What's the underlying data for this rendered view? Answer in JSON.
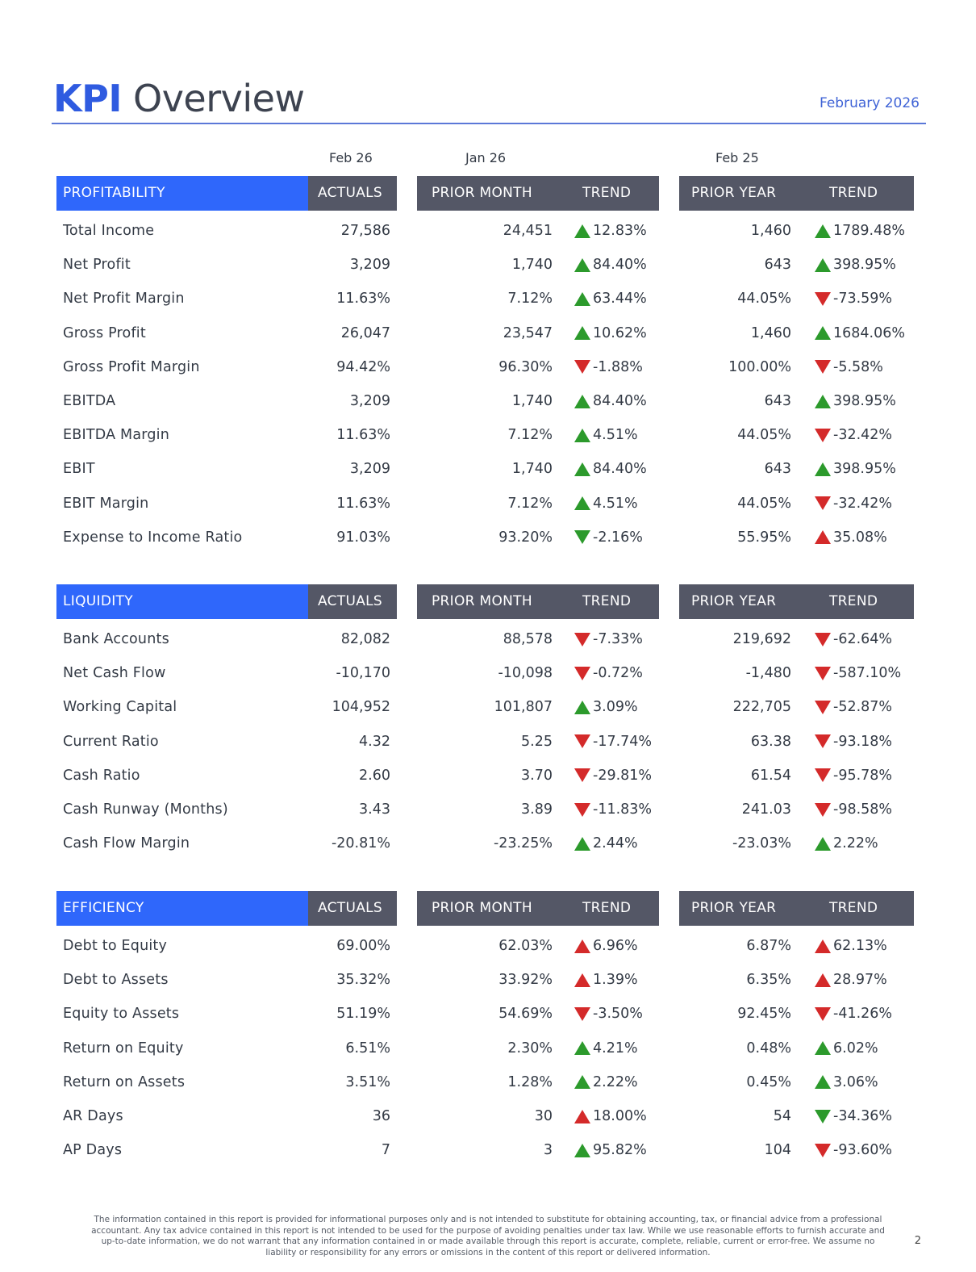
{
  "title": {
    "kpi": "KPI",
    "rest": "Overview"
  },
  "report_date": "February 2026",
  "periods": {
    "actuals": "Feb 26",
    "prior_month": "Jan 26",
    "prior_year": "Feb 25"
  },
  "colors": {
    "accent_blue": "#2f67fb",
    "header_gray": "#545766",
    "up_green": "#2c9a2c",
    "down_red": "#d42a2a"
  },
  "sections": [
    {
      "name": "PROFITABILITY",
      "actuals_label": "ACTUALS",
      "prior_month_label": "PRIOR MONTH",
      "prior_year_label": "PRIOR YEAR",
      "trend_label": "TREND",
      "rows": [
        {
          "label": "Total Income",
          "actual": "27,586",
          "pm": "24,451",
          "pm_trend": "12.83%",
          "pm_dir": "up",
          "pm_color": "green",
          "py": "1,460",
          "py_trend": "1789.48%",
          "py_dir": "up",
          "py_color": "green"
        },
        {
          "label": "Net Profit",
          "actual": "3,209",
          "pm": "1,740",
          "pm_trend": "84.40%",
          "pm_dir": "up",
          "pm_color": "green",
          "py": "643",
          "py_trend": "398.95%",
          "py_dir": "up",
          "py_color": "green"
        },
        {
          "label": "Net Profit Margin",
          "actual": "11.63%",
          "pm": "7.12%",
          "pm_trend": "63.44%",
          "pm_dir": "up",
          "pm_color": "green",
          "py": "44.05%",
          "py_trend": "-73.59%",
          "py_dir": "down",
          "py_color": "red"
        },
        {
          "label": "Gross Profit",
          "actual": "26,047",
          "pm": "23,547",
          "pm_trend": "10.62%",
          "pm_dir": "up",
          "pm_color": "green",
          "py": "1,460",
          "py_trend": "1684.06%",
          "py_dir": "up",
          "py_color": "green"
        },
        {
          "label": "Gross Profit Margin",
          "actual": "94.42%",
          "pm": "96.30%",
          "pm_trend": "-1.88%",
          "pm_dir": "down",
          "pm_color": "red",
          "py": "100.00%",
          "py_trend": "-5.58%",
          "py_dir": "down",
          "py_color": "red"
        },
        {
          "label": "EBITDA",
          "actual": "3,209",
          "pm": "1,740",
          "pm_trend": "84.40%",
          "pm_dir": "up",
          "pm_color": "green",
          "py": "643",
          "py_trend": "398.95%",
          "py_dir": "up",
          "py_color": "green"
        },
        {
          "label": "EBITDA Margin",
          "actual": "11.63%",
          "pm": "7.12%",
          "pm_trend": "4.51%",
          "pm_dir": "up",
          "pm_color": "green",
          "py": "44.05%",
          "py_trend": "-32.42%",
          "py_dir": "down",
          "py_color": "red"
        },
        {
          "label": "EBIT",
          "actual": "3,209",
          "pm": "1,740",
          "pm_trend": "84.40%",
          "pm_dir": "up",
          "pm_color": "green",
          "py": "643",
          "py_trend": "398.95%",
          "py_dir": "up",
          "py_color": "green"
        },
        {
          "label": "EBIT Margin",
          "actual": "11.63%",
          "pm": "7.12%",
          "pm_trend": "4.51%",
          "pm_dir": "up",
          "pm_color": "green",
          "py": "44.05%",
          "py_trend": "-32.42%",
          "py_dir": "down",
          "py_color": "red"
        },
        {
          "label": "Expense to Income Ratio",
          "actual": "91.03%",
          "pm": "93.20%",
          "pm_trend": "-2.16%",
          "pm_dir": "down",
          "pm_color": "green",
          "py": "55.95%",
          "py_trend": "35.08%",
          "py_dir": "up",
          "py_color": "red"
        }
      ]
    },
    {
      "name": "LIQUIDITY",
      "actuals_label": "ACTUALS",
      "prior_month_label": "PRIOR MONTH",
      "prior_year_label": "PRIOR YEAR",
      "trend_label": "TREND",
      "rows": [
        {
          "label": "Bank Accounts",
          "actual": "82,082",
          "pm": "88,578",
          "pm_trend": "-7.33%",
          "pm_dir": "down",
          "pm_color": "red",
          "py": "219,692",
          "py_trend": "-62.64%",
          "py_dir": "down",
          "py_color": "red"
        },
        {
          "label": "Net Cash Flow",
          "actual": "-10,170",
          "pm": "-10,098",
          "pm_trend": "-0.72%",
          "pm_dir": "down",
          "pm_color": "red",
          "py": "-1,480",
          "py_trend": "-587.10%",
          "py_dir": "down",
          "py_color": "red"
        },
        {
          "label": "Working Capital",
          "actual": "104,952",
          "pm": "101,807",
          "pm_trend": "3.09%",
          "pm_dir": "up",
          "pm_color": "green",
          "py": "222,705",
          "py_trend": "-52.87%",
          "py_dir": "down",
          "py_color": "red"
        },
        {
          "label": "Current Ratio",
          "actual": "4.32",
          "pm": "5.25",
          "pm_trend": "-17.74%",
          "pm_dir": "down",
          "pm_color": "red",
          "py": "63.38",
          "py_trend": "-93.18%",
          "py_dir": "down",
          "py_color": "red"
        },
        {
          "label": "Cash Ratio",
          "actual": "2.60",
          "pm": "3.70",
          "pm_trend": "-29.81%",
          "pm_dir": "down",
          "pm_color": "red",
          "py": "61.54",
          "py_trend": "-95.78%",
          "py_dir": "down",
          "py_color": "red"
        },
        {
          "label": "Cash Runway (Months)",
          "actual": "3.43",
          "pm": "3.89",
          "pm_trend": "-11.83%",
          "pm_dir": "down",
          "pm_color": "red",
          "py": "241.03",
          "py_trend": "-98.58%",
          "py_dir": "down",
          "py_color": "red"
        },
        {
          "label": "Cash Flow Margin",
          "actual": "-20.81%",
          "pm": "-23.25%",
          "pm_trend": "2.44%",
          "pm_dir": "up",
          "pm_color": "green",
          "py": "-23.03%",
          "py_trend": "2.22%",
          "py_dir": "up",
          "py_color": "green"
        }
      ]
    },
    {
      "name": "EFFICIENCY",
      "actuals_label": "ACTUALS",
      "prior_month_label": "PRIOR MONTH",
      "prior_year_label": "PRIOR YEAR",
      "trend_label": "TREND",
      "rows": [
        {
          "label": "Debt to Equity",
          "actual": "69.00%",
          "pm": "62.03%",
          "pm_trend": "6.96%",
          "pm_dir": "up",
          "pm_color": "red",
          "py": "6.87%",
          "py_trend": "62.13%",
          "py_dir": "up",
          "py_color": "red"
        },
        {
          "label": "Debt to Assets",
          "actual": "35.32%",
          "pm": "33.92%",
          "pm_trend": "1.39%",
          "pm_dir": "up",
          "pm_color": "red",
          "py": "6.35%",
          "py_trend": "28.97%",
          "py_dir": "up",
          "py_color": "red"
        },
        {
          "label": "Equity to Assets",
          "actual": "51.19%",
          "pm": "54.69%",
          "pm_trend": "-3.50%",
          "pm_dir": "down",
          "pm_color": "red",
          "py": "92.45%",
          "py_trend": "-41.26%",
          "py_dir": "down",
          "py_color": "red"
        },
        {
          "label": "Return on Equity",
          "actual": "6.51%",
          "pm": "2.30%",
          "pm_trend": "4.21%",
          "pm_dir": "up",
          "pm_color": "green",
          "py": "0.48%",
          "py_trend": "6.02%",
          "py_dir": "up",
          "py_color": "green"
        },
        {
          "label": "Return on Assets",
          "actual": "3.51%",
          "pm": "1.28%",
          "pm_trend": "2.22%",
          "pm_dir": "up",
          "pm_color": "green",
          "py": "0.45%",
          "py_trend": "3.06%",
          "py_dir": "up",
          "py_color": "green"
        },
        {
          "label": "AR Days",
          "actual": "36",
          "pm": "30",
          "pm_trend": "18.00%",
          "pm_dir": "up",
          "pm_color": "red",
          "py": "54",
          "py_trend": "-34.36%",
          "py_dir": "down",
          "py_color": "green"
        },
        {
          "label": "AP Days",
          "actual": "7",
          "pm": "3",
          "pm_trend": "95.82%",
          "pm_dir": "up",
          "pm_color": "green",
          "py": "104",
          "py_trend": "-93.60%",
          "py_dir": "down",
          "py_color": "red"
        }
      ]
    }
  ],
  "footer": "The information contained in this report is provided for informational purposes only and is not intended to substitute for obtaining accounting, tax, or financial advice from a professional accountant. Any tax advice contained in this report is not intended to be used for the purpose of avoiding penalties under tax law. While we use reasonable efforts to furnish accurate and up-to-date information, we do not warrant that any information contained in or made available through this report is accurate, complete, reliable, current or error-free. We assume no liability or responsibility for any errors or omissions in the content of this report or delivered information.",
  "page_number": "2"
}
